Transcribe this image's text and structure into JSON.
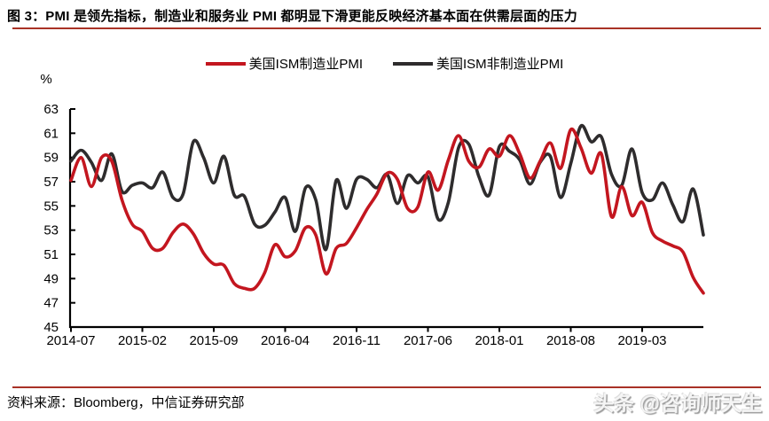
{
  "page": {
    "title": "图 3：PMI 是领先指标，制造业和服务业 PMI 都明显下滑更能反映经济基本面在供需层面的压力",
    "source": "资料来源：Bloomberg，中信证券研究部",
    "watermark": "头条 @咨询师天生"
  },
  "colors": {
    "manufacturing_line": "#c3161f",
    "non_manufacturing_line": "#2e2c2d",
    "title_rule": "#a93226",
    "axis": "#000000"
  },
  "chart_data": {
    "type": "line",
    "unit_label": "%",
    "ylim": [
      45,
      63
    ],
    "y_ticks": [
      45,
      47,
      49,
      51,
      53,
      55,
      57,
      59,
      61,
      63
    ],
    "x_start": "2014-07",
    "x_end": "2019-09",
    "x_interval": "monthly",
    "x_tick_labels": [
      "2014-07",
      "2015-02",
      "2015-09",
      "2016-04",
      "2016-11",
      "2017-06",
      "2018-01",
      "2018-08",
      "2019-03"
    ],
    "x_tick_month_offsets": [
      0,
      7,
      14,
      21,
      28,
      35,
      42,
      49,
      56
    ],
    "grid": false,
    "legend_position": "top",
    "series": [
      {
        "name": "美国ISM制造业PMI",
        "color": "#c3161f",
        "values": [
          57.1,
          59.0,
          56.6,
          59.0,
          58.7,
          55.5,
          53.5,
          52.9,
          51.5,
          51.5,
          52.8,
          53.5,
          52.7,
          51.1,
          50.2,
          50.1,
          48.6,
          48.2,
          48.2,
          49.5,
          51.8,
          50.8,
          51.3,
          53.2,
          52.6,
          49.4,
          51.5,
          51.9,
          53.2,
          54.7,
          56.0,
          57.7,
          57.2,
          54.8,
          54.9,
          57.8,
          56.3,
          58.8,
          60.8,
          58.7,
          58.2,
          59.7,
          59.1,
          60.8,
          59.3,
          57.3,
          58.7,
          60.2,
          58.1,
          61.3,
          59.8,
          57.7,
          59.3,
          54.1,
          56.6,
          54.2,
          55.3,
          52.8,
          52.1,
          51.7,
          51.2,
          49.1,
          47.8
        ]
      },
      {
        "name": "美国ISM非制造业PMI",
        "color": "#2e2c2d",
        "values": [
          58.7,
          59.6,
          58.6,
          57.1,
          59.3,
          56.2,
          56.7,
          56.9,
          56.5,
          57.8,
          55.7,
          56.0,
          60.3,
          59.0,
          56.9,
          59.1,
          55.9,
          55.8,
          53.5,
          53.4,
          54.5,
          55.7,
          52.9,
          56.5,
          55.5,
          51.4,
          57.1,
          54.8,
          57.2,
          57.2,
          56.5,
          57.6,
          55.2,
          57.5,
          56.9,
          57.4,
          53.9,
          55.3,
          59.8,
          60.1,
          57.4,
          55.9,
          59.9,
          59.5,
          58.8,
          56.8,
          58.6,
          59.1,
          55.7,
          58.5,
          61.6,
          60.3,
          60.7,
          57.6,
          56.7,
          59.7,
          56.1,
          55.5,
          56.9,
          55.1,
          53.7,
          56.4,
          52.6
        ]
      }
    ]
  }
}
